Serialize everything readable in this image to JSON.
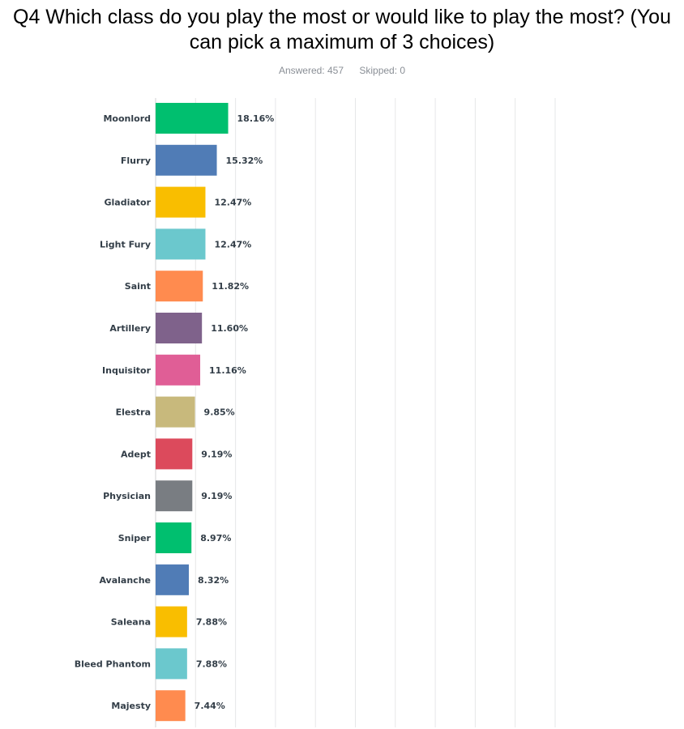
{
  "title": "Q4 Which class do you play the most or would like to play the most? (You can pick a maximum of 3 choices)",
  "answered": "Answered: 457",
  "skipped": "Skipped: 0",
  "chart_data": {
    "type": "bar",
    "orientation": "horizontal",
    "xlim": [
      0,
      100
    ],
    "grid": true,
    "categories": [
      "Moonlord",
      "Flurry",
      "Gladiator",
      "Light Fury",
      "Saint",
      "Artillery",
      "Inquisitor",
      "Elestra",
      "Adept",
      "Physician",
      "Sniper",
      "Avalanche",
      "Saleana",
      "Bleed Phantom",
      "Majesty"
    ],
    "values": [
      18.16,
      15.32,
      12.47,
      12.47,
      11.82,
      11.6,
      11.16,
      9.85,
      9.19,
      9.19,
      8.97,
      8.32,
      7.88,
      7.88,
      7.44
    ],
    "value_labels": [
      "18.16%",
      "15.32%",
      "12.47%",
      "12.47%",
      "11.82%",
      "11.60%",
      "11.16%",
      "9.85%",
      "9.19%",
      "9.19%",
      "8.97%",
      "8.32%",
      "7.88%",
      "7.88%",
      "7.44%"
    ],
    "colors": [
      "#00bf6f",
      "#507cb6",
      "#f9be00",
      "#6bc8cd",
      "#ff8b4f",
      "#7f628b",
      "#e05e96",
      "#c8b97c",
      "#dc4a5c",
      "#797d82",
      "#00bf6f",
      "#507cb6",
      "#f9be00",
      "#6bc8cd",
      "#ff8b4f"
    ]
  }
}
